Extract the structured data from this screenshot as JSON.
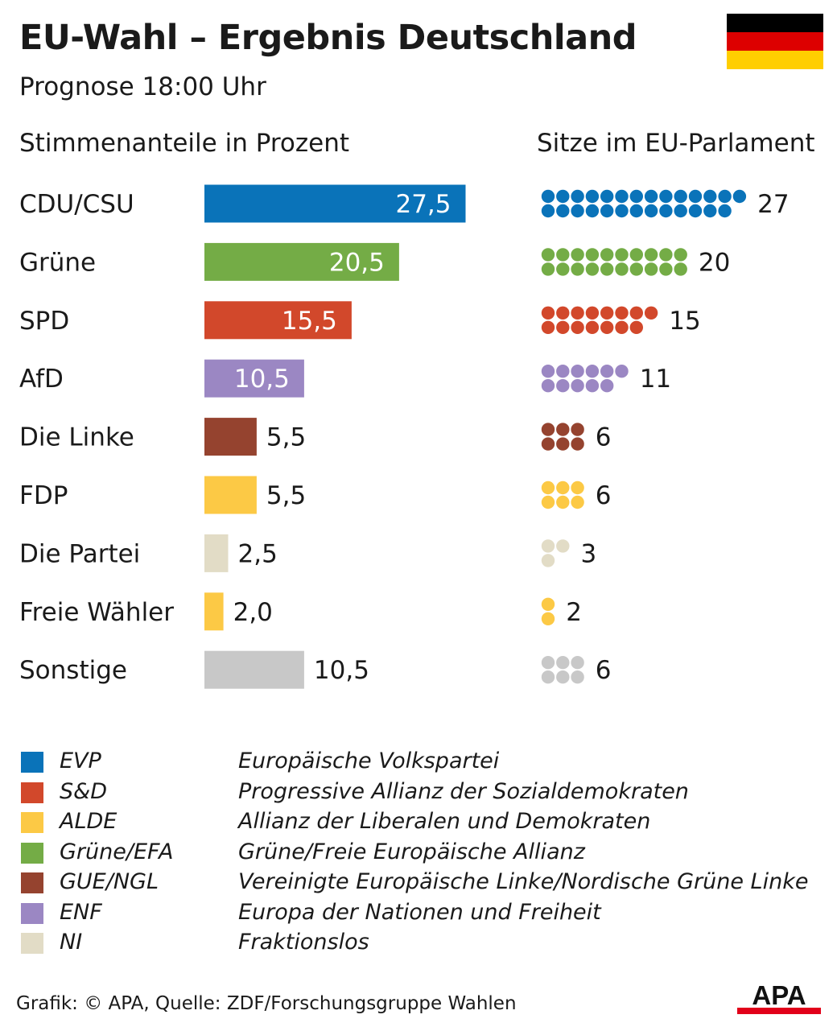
{
  "title": "EU-Wahl – Ergebnis Deutschland",
  "subtitle": "Prognose 18:00 Uhr",
  "flag_colors": [
    "#000000",
    "#dd0000",
    "#ffce00"
  ],
  "chart_data": {
    "type": "bar",
    "orientation": "horizontal",
    "left_heading": "Stimmenanteile in Prozent",
    "right_heading": "Sitze im EU-Parlament",
    "categories": [
      "CDU/CSU",
      "Grüne",
      "SPD",
      "AfD",
      "Die Linke",
      "FDP",
      "Die Partei",
      "Freie Wähler",
      "Sonstige"
    ],
    "values": [
      27.5,
      20.5,
      15.5,
      10.5,
      5.5,
      5.5,
      2.5,
      2.0,
      10.5
    ],
    "value_labels": [
      "27,5",
      "20,5",
      "15,5",
      "10,5",
      "5,5",
      "5,5",
      "2,5",
      "2,0",
      "10,5"
    ],
    "seats": [
      27,
      20,
      15,
      11,
      6,
      6,
      3,
      2,
      6
    ],
    "colors": [
      "#0a73b9",
      "#74ac46",
      "#d2482b",
      "#9b87c3",
      "#95432f",
      "#fcc945",
      "#e2dcc6",
      "#fcc945",
      "#c8c8c8"
    ],
    "value_label_inside": [
      true,
      true,
      true,
      true,
      false,
      false,
      false,
      false,
      false
    ]
  },
  "legend": [
    {
      "abbr": "EVP",
      "name": "Europäische Volkspartei",
      "color": "#0a73b9"
    },
    {
      "abbr": "S&D",
      "name": "Progressive Allianz der Sozialdemokraten",
      "color": "#d2482b"
    },
    {
      "abbr": "ALDE",
      "name": "Allianz der Liberalen und Demokraten",
      "color": "#fcc945"
    },
    {
      "abbr": "Grüne/EFA",
      "name": "Grüne/Freie Europäische Allianz",
      "color": "#74ac46"
    },
    {
      "abbr": "GUE/NGL",
      "name": "Vereinigte Europäische Linke/Nordische Grüne Linke",
      "color": "#95432f"
    },
    {
      "abbr": "ENF",
      "name": "Europa der Nationen und Freiheit",
      "color": "#9b87c3"
    },
    {
      "abbr": "NI",
      "name": "Fraktionslos",
      "color": "#e2dcc6"
    }
  ],
  "source": "Grafik: © APA, Quelle: ZDF/Forschungsgruppe Wahlen",
  "logo_text": "APA"
}
